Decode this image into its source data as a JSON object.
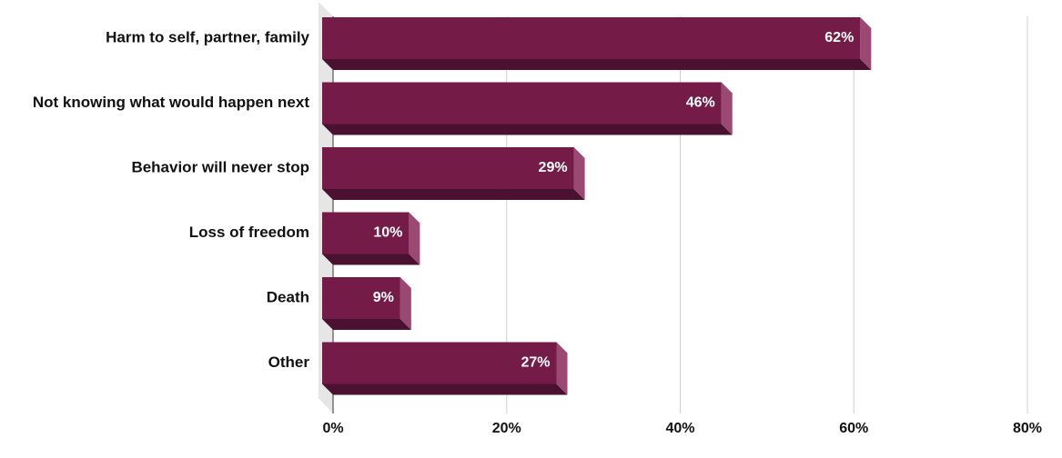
{
  "chart_data": {
    "type": "bar",
    "orientation": "horizontal",
    "categories": [
      "Harm to self, partner, family",
      "Not knowing what would happen next",
      "Behavior will never stop",
      "Loss of freedom",
      "Death",
      "Other"
    ],
    "values": [
      62,
      46,
      29,
      10,
      9,
      27
    ],
    "value_labels": [
      "62%",
      "46%",
      "29%",
      "10%",
      "9%",
      "27%"
    ],
    "color": "#741c47",
    "xlim": [
      0,
      80
    ],
    "xticks": [
      {
        "value": 0,
        "label": "0%"
      },
      {
        "value": 20,
        "label": "20%"
      },
      {
        "value": 40,
        "label": "40%"
      },
      {
        "value": 60,
        "label": "60%"
      },
      {
        "value": 80,
        "label": "80%"
      }
    ],
    "grid": true
  }
}
